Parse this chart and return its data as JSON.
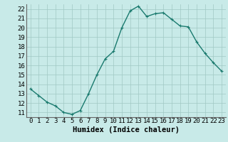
{
  "x": [
    0,
    1,
    2,
    3,
    4,
    5,
    6,
    7,
    8,
    9,
    10,
    11,
    12,
    13,
    14,
    15,
    16,
    17,
    18,
    19,
    20,
    21,
    22,
    23
  ],
  "y": [
    13.5,
    12.8,
    12.1,
    11.7,
    11.0,
    10.8,
    11.2,
    13.0,
    15.0,
    16.7,
    17.5,
    20.0,
    21.8,
    22.3,
    21.2,
    21.5,
    21.6,
    20.9,
    20.2,
    20.1,
    18.5,
    17.3,
    16.3,
    15.4
  ],
  "line_color": "#1a7a6e",
  "marker": "+",
  "marker_color": "#1a7a6e",
  "bg_color": "#c8eae8",
  "grid_color": "#a0c8c4",
  "xlabel": "Humidex (Indice chaleur)",
  "xlim": [
    -0.5,
    23.5
  ],
  "ylim": [
    10.5,
    22.5
  ],
  "yticks": [
    11,
    12,
    13,
    14,
    15,
    16,
    17,
    18,
    19,
    20,
    21,
    22
  ],
  "xticks": [
    0,
    1,
    2,
    3,
    4,
    5,
    6,
    7,
    8,
    9,
    10,
    11,
    12,
    13,
    14,
    15,
    16,
    17,
    18,
    19,
    20,
    21,
    22,
    23
  ],
  "xlabel_fontsize": 7.5,
  "tick_fontsize": 6.5,
  "linewidth": 1.0,
  "markersize": 3.5
}
